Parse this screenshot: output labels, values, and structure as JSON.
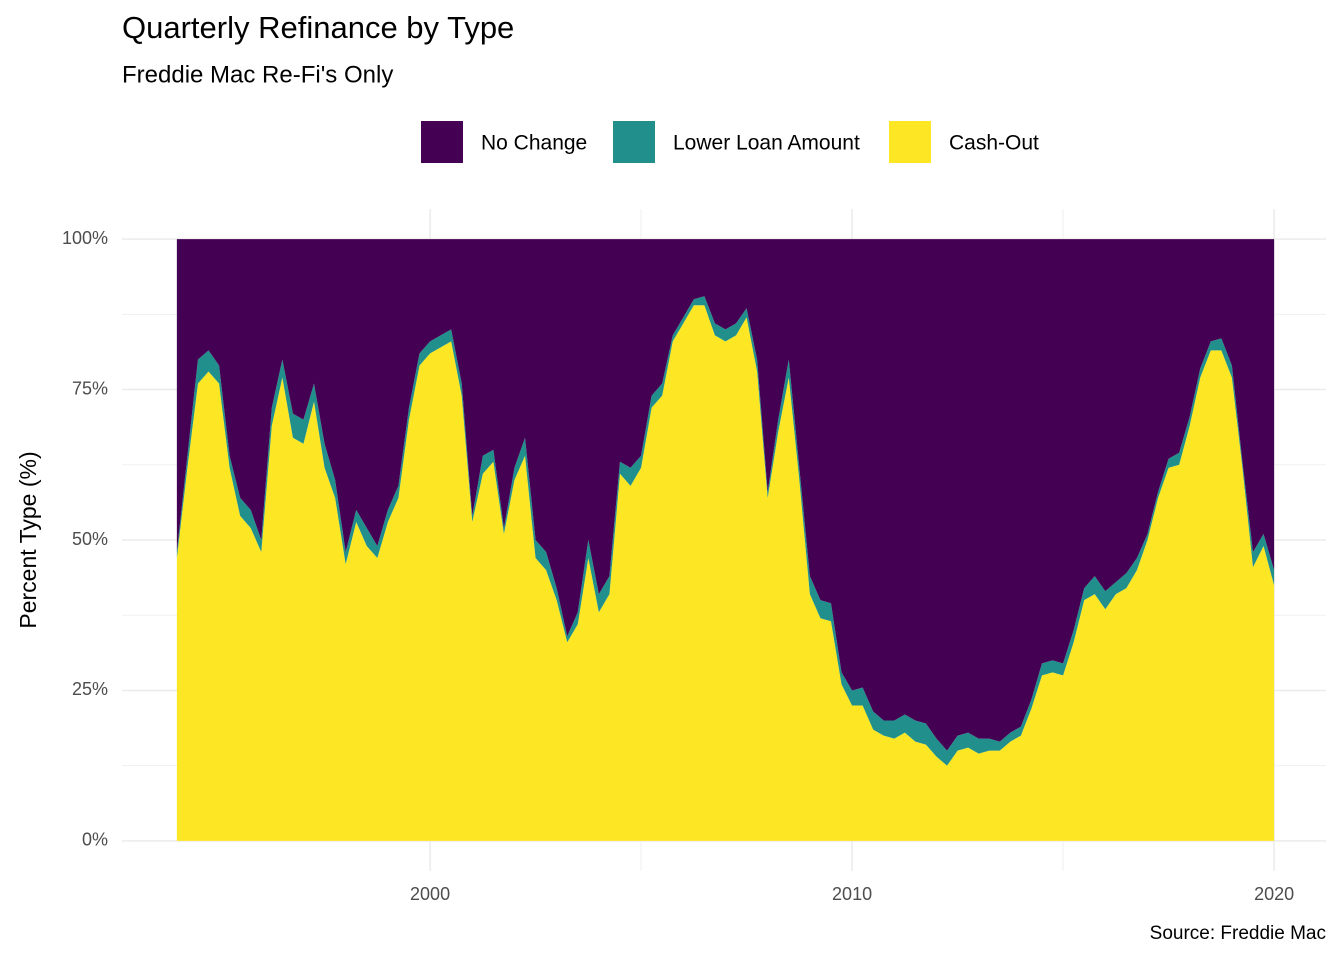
{
  "chart_data": {
    "type": "stacked_area",
    "title": "Quarterly Refinance by Type",
    "subtitle": "Freddie Mac Re-Fi's Only",
    "y_label": "Percent Type (%)",
    "caption": "Source: Freddie Mac",
    "x": [
      1994,
      1994.25,
      1994.5,
      1994.75,
      1995,
      1995.25,
      1995.5,
      1995.75,
      1996,
      1996.25,
      1996.5,
      1996.75,
      1997,
      1997.25,
      1997.5,
      1997.75,
      1998,
      1998.25,
      1998.5,
      1998.75,
      1999,
      1999.25,
      1999.5,
      1999.75,
      2000,
      2000.25,
      2000.5,
      2000.75,
      2001,
      2001.25,
      2001.5,
      2001.75,
      2002,
      2002.25,
      2002.5,
      2002.75,
      2003,
      2003.25,
      2003.5,
      2003.75,
      2004,
      2004.25,
      2004.5,
      2004.75,
      2005,
      2005.25,
      2005.5,
      2005.75,
      2006,
      2006.25,
      2006.5,
      2006.75,
      2007,
      2007.25,
      2007.5,
      2007.75,
      2008,
      2008.25,
      2008.5,
      2008.75,
      2009,
      2009.25,
      2009.5,
      2009.75,
      2010,
      2010.25,
      2010.5,
      2010.75,
      2011,
      2011.25,
      2011.5,
      2011.75,
      2012,
      2012.25,
      2012.5,
      2012.75,
      2013,
      2013.25,
      2013.5,
      2013.75,
      2014,
      2014.25,
      2014.5,
      2014.75,
      2015,
      2015.25,
      2015.5,
      2015.75,
      2016,
      2016.25,
      2016.5,
      2016.75,
      2017,
      2017.25,
      2017.5,
      2017.75,
      2018,
      2018.25,
      2018.5,
      2018.75,
      2019,
      2019.25,
      2019.5,
      2019.75,
      2020
    ],
    "series": [
      {
        "name": "No Change",
        "color": "#440154",
        "values": [
          52,
          36,
          20,
          18.5,
          21,
          36,
          43,
          45,
          50,
          28,
          20,
          29,
          30,
          24,
          34,
          40,
          52,
          45,
          48,
          51,
          45,
          41,
          28,
          19,
          17,
          16,
          15,
          24,
          46,
          36,
          35,
          48,
          38,
          33,
          50,
          52,
          58,
          66,
          62,
          50,
          59,
          56,
          37,
          38,
          36,
          26,
          24,
          16,
          13,
          10,
          9.5,
          14,
          15,
          14,
          11.5,
          20,
          42,
          30,
          20,
          38,
          56,
          60,
          60.5,
          72,
          75,
          74.5,
          78.5,
          80,
          80,
          79,
          80,
          80.5,
          83,
          85,
          82.5,
          82,
          83,
          83,
          83.5,
          82,
          81,
          76.5,
          70.5,
          70,
          70.5,
          65,
          58,
          56,
          58.5,
          57,
          55.5,
          53,
          49,
          42,
          36.5,
          35.5,
          29.5,
          21.5,
          17,
          16.5,
          21,
          37,
          52,
          49,
          55
        ]
      },
      {
        "name": "Lower Loan Amount",
        "color": "#21908C",
        "values": [
          1,
          2,
          4,
          3.5,
          3,
          2,
          3,
          3,
          2,
          3,
          3,
          4,
          4,
          3,
          4,
          3,
          2,
          2,
          3,
          2,
          2,
          2,
          2,
          2,
          2,
          2,
          2,
          2,
          1,
          3,
          2,
          1,
          2,
          3,
          3,
          3,
          2,
          1,
          2,
          3,
          3,
          3,
          2,
          3,
          2,
          2,
          2,
          1,
          1,
          1,
          1.5,
          2,
          2,
          2,
          1.5,
          2,
          1,
          2,
          3,
          2,
          3,
          3,
          3,
          2,
          2.5,
          3,
          3,
          2.5,
          3,
          3,
          3.5,
          3.5,
          3,
          2.5,
          2.5,
          2.5,
          2.5,
          2,
          1.5,
          1.5,
          1.5,
          1.5,
          2,
          2,
          2,
          2,
          2,
          3,
          3,
          2,
          2.5,
          2,
          1,
          1,
          1.5,
          2,
          1.5,
          1.5,
          1.5,
          2,
          2,
          1,
          2.5,
          2,
          2.5
        ]
      },
      {
        "name": "Cash-Out",
        "color": "#FDE725",
        "values": [
          47,
          62,
          76,
          78,
          76,
          62,
          54,
          52,
          48,
          69,
          77,
          67,
          66,
          73,
          62,
          57,
          46,
          53,
          49,
          47,
          53,
          57,
          70,
          79,
          81,
          82,
          83,
          74,
          53,
          61,
          63,
          51,
          60,
          64,
          47,
          45,
          40,
          33,
          36,
          47,
          38,
          41,
          61,
          59,
          62,
          72,
          74,
          83,
          86,
          89,
          89,
          84,
          83,
          84,
          87,
          78,
          57,
          68,
          77,
          60,
          41,
          37,
          36.5,
          26,
          22.5,
          22.5,
          18.5,
          17.5,
          17,
          18,
          16.5,
          16,
          14,
          12.5,
          15,
          15.5,
          14.5,
          15,
          15,
          16.5,
          17.5,
          22,
          27.5,
          28,
          27.5,
          33,
          40,
          41,
          38.5,
          41,
          42,
          45,
          50,
          57,
          62,
          62.5,
          69,
          77,
          81.5,
          81.5,
          77,
          62,
          45.5,
          49,
          42.5
        ]
      }
    ],
    "xlim": [
      1992.7,
      2021.23
    ],
    "xticks": [
      2000,
      2010,
      2020
    ],
    "ylim": [
      -5,
      105
    ],
    "yticks": [
      {
        "value": 0,
        "label": "0%"
      },
      {
        "value": 25,
        "label": "25%"
      },
      {
        "value": 50,
        "label": "50%"
      },
      {
        "value": 75,
        "label": "75%"
      },
      {
        "value": 100,
        "label": "100%"
      }
    ],
    "grid": true,
    "legend": "top"
  }
}
